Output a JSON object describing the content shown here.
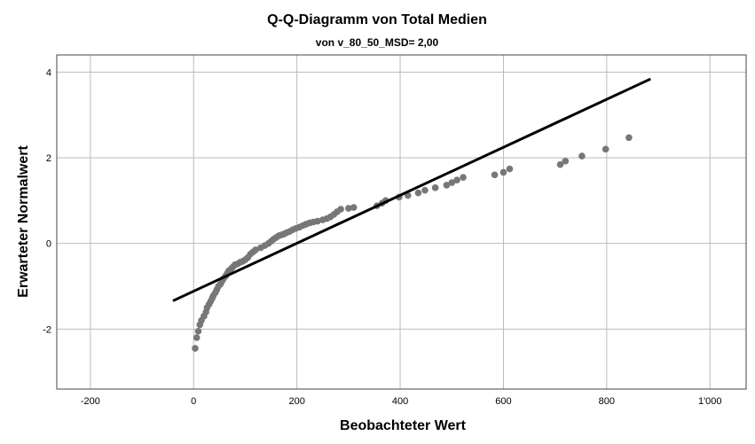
{
  "chart_data": {
    "type": "scatter",
    "title": "Q-Q-Diagramm von Total Medien",
    "subtitle": "von v_80_50_MSD= 2,00",
    "xlabel": "Beobachteter Wert",
    "ylabel": "Erwarteter Normalwert",
    "xlim": [
      -265,
      1070
    ],
    "ylim": [
      -3.4,
      4.4
    ],
    "x_ticks": [
      -200,
      0,
      200,
      400,
      600,
      800,
      1000
    ],
    "x_tick_labels": [
      "-200",
      "0",
      "200",
      "400",
      "600",
      "800",
      "1'000"
    ],
    "y_ticks": [
      -2,
      0,
      2,
      4
    ],
    "y_tick_labels": [
      "-2",
      "0",
      "2",
      "4"
    ],
    "grid": true,
    "colors": {
      "points": "#777777",
      "line": "#000000",
      "grid": "#bbbbbb"
    },
    "reference_line": {
      "x": [
        -40,
        885
      ],
      "y": [
        -1.34,
        3.84
      ]
    },
    "points": [
      [
        3,
        -2.45
      ],
      [
        6,
        -2.2
      ],
      [
        9,
        -2.05
      ],
      [
        12,
        -1.9
      ],
      [
        15,
        -1.8
      ],
      [
        20,
        -1.7
      ],
      [
        24,
        -1.6
      ],
      [
        26,
        -1.5
      ],
      [
        30,
        -1.42
      ],
      [
        33,
        -1.35
      ],
      [
        36,
        -1.28
      ],
      [
        38,
        -1.22
      ],
      [
        42,
        -1.15
      ],
      [
        45,
        -1.08
      ],
      [
        48,
        -1.0
      ],
      [
        52,
        -0.95
      ],
      [
        55,
        -0.88
      ],
      [
        58,
        -0.82
      ],
      [
        62,
        -0.76
      ],
      [
        65,
        -0.7
      ],
      [
        68,
        -0.64
      ],
      [
        72,
        -0.6
      ],
      [
        76,
        -0.55
      ],
      [
        80,
        -0.5
      ],
      [
        85,
        -0.48
      ],
      [
        90,
        -0.44
      ],
      [
        95,
        -0.42
      ],
      [
        100,
        -0.38
      ],
      [
        105,
        -0.33
      ],
      [
        110,
        -0.25
      ],
      [
        115,
        -0.2
      ],
      [
        120,
        -0.15
      ],
      [
        130,
        -0.1
      ],
      [
        138,
        -0.05
      ],
      [
        145,
        0.0
      ],
      [
        150,
        0.05
      ],
      [
        155,
        0.1
      ],
      [
        160,
        0.14
      ],
      [
        165,
        0.18
      ],
      [
        170,
        0.2
      ],
      [
        175,
        0.22
      ],
      [
        180,
        0.25
      ],
      [
        186,
        0.28
      ],
      [
        192,
        0.32
      ],
      [
        198,
        0.35
      ],
      [
        205,
        0.38
      ],
      [
        212,
        0.42
      ],
      [
        218,
        0.45
      ],
      [
        225,
        0.48
      ],
      [
        232,
        0.5
      ],
      [
        240,
        0.52
      ],
      [
        250,
        0.55
      ],
      [
        258,
        0.58
      ],
      [
        265,
        0.62
      ],
      [
        272,
        0.68
      ],
      [
        278,
        0.74
      ],
      [
        285,
        0.8
      ],
      [
        300,
        0.82
      ],
      [
        310,
        0.84
      ],
      [
        355,
        0.88
      ],
      [
        365,
        0.94
      ],
      [
        372,
        1.0
      ],
      [
        398,
        1.08
      ],
      [
        415,
        1.12
      ],
      [
        435,
        1.18
      ],
      [
        448,
        1.24
      ],
      [
        468,
        1.3
      ],
      [
        490,
        1.36
      ],
      [
        500,
        1.42
      ],
      [
        510,
        1.48
      ],
      [
        522,
        1.54
      ],
      [
        583,
        1.6
      ],
      [
        600,
        1.66
      ],
      [
        612,
        1.74
      ],
      [
        710,
        1.84
      ],
      [
        720,
        1.92
      ],
      [
        752,
        2.04
      ],
      [
        798,
        2.2
      ],
      [
        843,
        2.47
      ]
    ]
  }
}
